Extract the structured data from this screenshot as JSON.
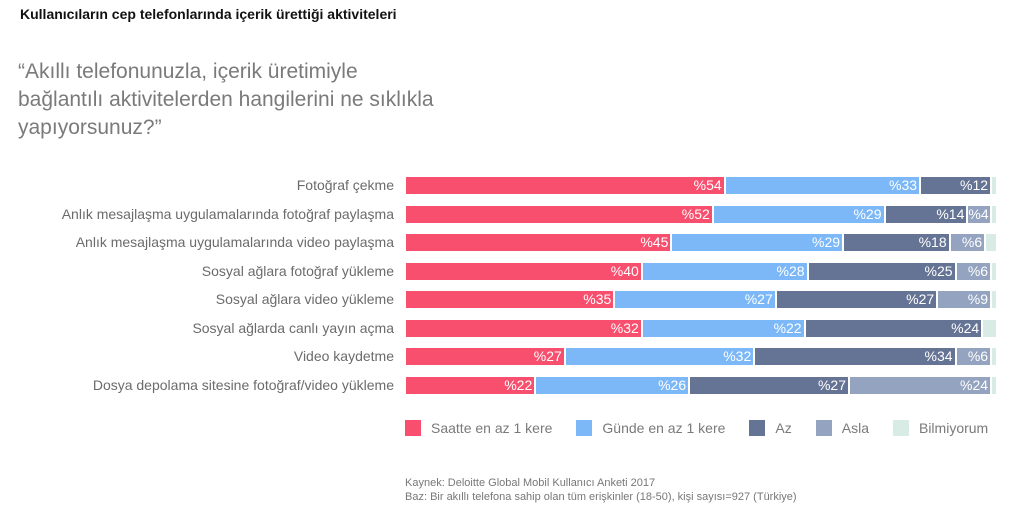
{
  "header": {
    "title": "Kullanıcıların cep telefonlarında içerik ürettiği aktiviteleri"
  },
  "question": "“Akıllı telefonunuzla, içerik üretimiyle bağlantılı aktivitelerden hangilerini ne sıklıkla yapıyorsunuz?”",
  "chart_data": {
    "type": "bar",
    "orientation": "horizontal",
    "stacked": true,
    "value_prefix": "%",
    "categories": [
      "Fotoğraf çekme",
      "Anlık mesajlaşma uygulamalarında fotoğraf paylaşma",
      "Anlık mesajlaşma uygulamalarında video paylaşma",
      "Sosyal ağlara fotoğraf yükleme",
      "Sosyal ağlara video yükleme",
      "Sosyal ağlarda canlı yayın açma",
      "Video kaydetme",
      "Dosya depolama sitesine fotoğraf/video yükleme"
    ],
    "series": [
      {
        "name": "Saatte en az 1 kere",
        "color": "#f94f6e",
        "values": [
          54,
          52,
          45,
          40,
          35,
          32,
          27,
          22
        ]
      },
      {
        "name": "Günde en az 1 kere",
        "color": "#7cb8f7",
        "values": [
          33,
          29,
          29,
          28,
          27,
          22,
          32,
          26
        ]
      },
      {
        "name": "Az",
        "color": "#657395",
        "values": [
          12,
          14,
          18,
          25,
          27,
          24,
          34,
          27
        ]
      },
      {
        "name": "Asla",
        "color": "#94a3bf",
        "values": [
          0,
          4,
          6,
          6,
          9,
          0,
          6,
          24
        ]
      },
      {
        "name": "Bilmiyorum",
        "color": "#d8ebe4",
        "values": [
          1,
          1,
          2,
          1,
          1,
          2,
          1,
          1
        ]
      }
    ],
    "labeled_series": [
      "Saatte en az 1 kere",
      "Günde en az 1 kere",
      "Az",
      "Asla"
    ],
    "legend": "bottom",
    "grid": false
  },
  "footer": {
    "source": "Kaynek: Deloitte Global Mobil Kullanıcı Anketi 2017",
    "base": "Baz: Bir akıllı telefona sahip olan tüm erişkinler (18-50), kişi sayısı=927 (Türkiye)"
  }
}
